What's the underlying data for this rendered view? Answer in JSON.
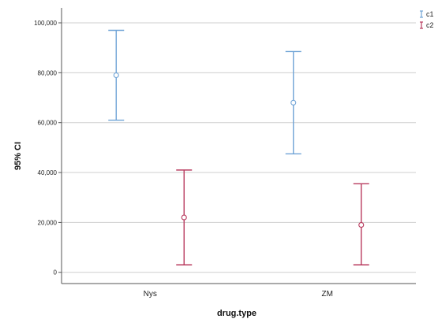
{
  "chart_data": {
    "type": "errorbar",
    "title": "",
    "xlabel": "drug.type",
    "ylabel": "95% CI",
    "categories": [
      "Nys",
      "ZM"
    ],
    "ylim": [
      -4500,
      106000
    ],
    "yticks": [
      0,
      20000,
      40000,
      60000,
      80000,
      100000
    ],
    "ytick_labels": [
      "0",
      "20,000",
      "40,000",
      "60,000",
      "80,000",
      "100,000"
    ],
    "grid": true,
    "legend_position": "top-right",
    "series": [
      {
        "name": "c1",
        "color": "#6fa3d6",
        "points": [
          {
            "category": "Nys",
            "mean": 79000,
            "lower": 61000,
            "upper": 97000
          },
          {
            "category": "ZM",
            "mean": 68000,
            "lower": 47500,
            "upper": 88500
          }
        ]
      },
      {
        "name": "c2",
        "color": "#b83a5e",
        "points": [
          {
            "category": "Nys",
            "mean": 22000,
            "lower": 3000,
            "upper": 41000
          },
          {
            "category": "ZM",
            "mean": 19000,
            "lower": 3000,
            "upper": 35500
          }
        ]
      }
    ]
  }
}
